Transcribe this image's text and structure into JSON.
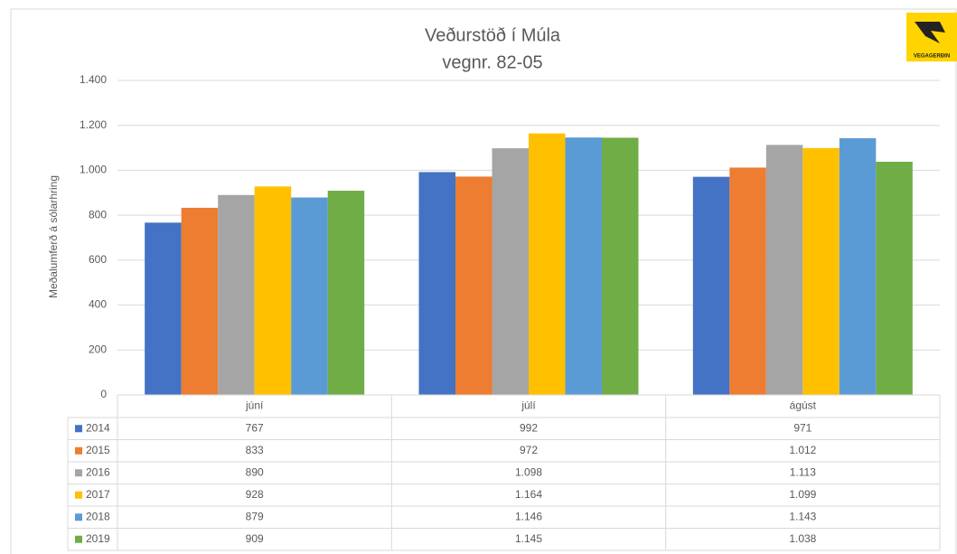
{
  "chart_data": {
    "type": "bar",
    "title": "Veðurstöð í Múla",
    "subtitle": "vegnr. 82-05",
    "y_label": "Meðalumferð á sólarhring",
    "logo_text": "VEGAGERÐIN",
    "categories": [
      "júní",
      "júlí",
      "ágúst"
    ],
    "series": [
      {
        "name": "2014",
        "color": "#4472c4",
        "values": [
          767,
          992,
          971
        ],
        "value_labels": [
          "767",
          "992",
          "971"
        ]
      },
      {
        "name": "2015",
        "color": "#ed7d31",
        "values": [
          833,
          972,
          1012
        ],
        "value_labels": [
          "833",
          "972",
          "1.012"
        ]
      },
      {
        "name": "2016",
        "color": "#a5a5a5",
        "values": [
          890,
          1098,
          1113
        ],
        "value_labels": [
          "890",
          "1.098",
          "1.113"
        ]
      },
      {
        "name": "2017",
        "color": "#ffc000",
        "values": [
          928,
          1164,
          1099
        ],
        "value_labels": [
          "928",
          "1.164",
          "1.099"
        ]
      },
      {
        "name": "2018",
        "color": "#5b9bd5",
        "values": [
          879,
          1146,
          1143
        ],
        "value_labels": [
          "879",
          "1.146",
          "1.143"
        ]
      },
      {
        "name": "2019",
        "color": "#70ad47",
        "values": [
          909,
          1145,
          1038
        ],
        "value_labels": [
          "909",
          "1.145",
          "1.038"
        ]
      }
    ],
    "ylim": [
      0,
      1400
    ],
    "yticks": [
      0,
      200,
      400,
      600,
      800,
      {
        "value": 1000,
        "label": "1.000"
      },
      {
        "value": 1200,
        "label": "1.200"
      },
      {
        "value": 1400,
        "label": "1.400"
      }
    ],
    "grid": true
  }
}
